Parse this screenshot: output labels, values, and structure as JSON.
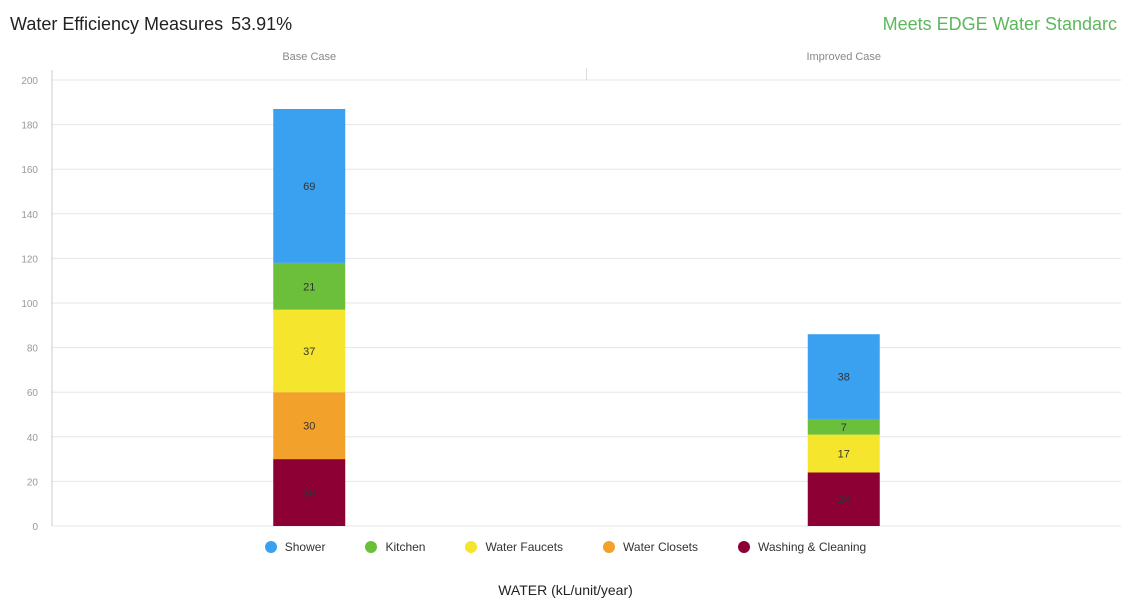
{
  "header": {
    "title": "Water Efficiency Measures",
    "percent": "53.91%",
    "status": "Meets EDGE Water Standarc",
    "status_color": "#5cb85c"
  },
  "chart_data": {
    "type": "bar",
    "stacked": true,
    "categories": [
      "Base Case",
      "Improved Case"
    ],
    "series": [
      {
        "name": "Washing & Cleaning",
        "color": "#8c0034",
        "values": [
          30,
          24
        ]
      },
      {
        "name": "Water Closets",
        "color": "#f2a22b",
        "values": [
          30,
          0
        ]
      },
      {
        "name": "Water Faucets",
        "color": "#f5e52c",
        "values": [
          37,
          17
        ]
      },
      {
        "name": "Kitchen",
        "color": "#6bbf3a",
        "values": [
          21,
          7
        ]
      },
      {
        "name": "Shower",
        "color": "#3aa0f0",
        "values": [
          69,
          38
        ]
      }
    ],
    "xlabel": "WATER (kL/unit/year)",
    "ylabel": "",
    "ylim": [
      0,
      200
    ],
    "yticks": [
      0,
      20,
      40,
      60,
      80,
      100,
      120,
      140,
      160,
      180,
      200
    ],
    "grid": true,
    "legend": {
      "position": "bottom",
      "order": [
        "Shower",
        "Kitchen",
        "Water Faucets",
        "Water Closets",
        "Washing & Cleaning"
      ]
    }
  }
}
